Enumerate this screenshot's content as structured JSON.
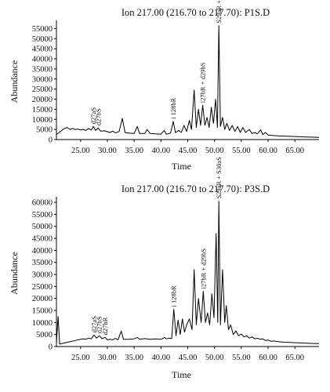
{
  "chart_data": [
    {
      "type": "line",
      "title": "Ion 217.00 (216.70 to 217.70): P1S.D",
      "xlabel": "Time",
      "ylabel": "Abundance",
      "xlim": [
        20.5,
        69.5
      ],
      "ylim": [
        0,
        57500
      ],
      "x_ticks": [
        "25.00",
        "30.00",
        "35.00",
        "40.00",
        "45.00",
        "50.00",
        "55.00",
        "60.00",
        "65.00"
      ],
      "x_tick_values": [
        25,
        30,
        35,
        40,
        45,
        50,
        55,
        60,
        65
      ],
      "y_ticks": [
        "0",
        "5000",
        "10000",
        "15000",
        "20000",
        "25000",
        "30000",
        "35000",
        "40000",
        "45000",
        "50000",
        "55000"
      ],
      "y_tick_values": [
        0,
        5000,
        10000,
        15000,
        20000,
        25000,
        30000,
        35000,
        40000,
        45000,
        50000,
        55000
      ],
      "grid": false,
      "series": [
        {
          "points": [
            [
              20.5,
              2500
            ],
            [
              21.0,
              3500
            ],
            [
              21.5,
              4500
            ],
            [
              22.0,
              5500
            ],
            [
              22.5,
              6000
            ],
            [
              23.0,
              5000
            ],
            [
              23.5,
              5500
            ],
            [
              24.0,
              5000
            ],
            [
              24.5,
              5200
            ],
            [
              25.0,
              4800
            ],
            [
              25.5,
              5000
            ],
            [
              26.0,
              4500
            ],
            [
              26.5,
              5500
            ],
            [
              27.0,
              4700
            ],
            [
              27.4,
              6500
            ],
            [
              27.8,
              4500
            ],
            [
              28.3,
              5800
            ],
            [
              28.7,
              4200
            ],
            [
              29.5,
              4300
            ],
            [
              30.5,
              3500
            ],
            [
              31.0,
              4200
            ],
            [
              31.5,
              3300
            ],
            [
              32.2,
              4000
            ],
            [
              32.8,
              10500
            ],
            [
              33.3,
              3500
            ],
            [
              34.0,
              3200
            ],
            [
              35.0,
              3000
            ],
            [
              35.6,
              6500
            ],
            [
              36.0,
              3000
            ],
            [
              37.0,
              3000
            ],
            [
              37.4,
              5000
            ],
            [
              38.0,
              3000
            ],
            [
              39.0,
              2800
            ],
            [
              40.0,
              2700
            ],
            [
              40.6,
              4500
            ],
            [
              41.0,
              2700
            ],
            [
              41.8,
              3200
            ],
            [
              42.3,
              9000
            ],
            [
              42.7,
              3400
            ],
            [
              43.3,
              4500
            ],
            [
              43.8,
              3500
            ],
            [
              44.3,
              7000
            ],
            [
              44.8,
              4000
            ],
            [
              45.3,
              9500
            ],
            [
              45.7,
              5000
            ],
            [
              46.2,
              24500
            ],
            [
              46.6,
              6000
            ],
            [
              47.0,
              15000
            ],
            [
              47.4,
              7000
            ],
            [
              47.8,
              17000
            ],
            [
              48.2,
              7000
            ],
            [
              48.6,
              11000
            ],
            [
              49.0,
              6000
            ],
            [
              49.4,
              16000
            ],
            [
              49.8,
              8000
            ],
            [
              50.2,
              20000
            ],
            [
              50.55,
              6000
            ],
            [
              50.8,
              56500
            ],
            [
              51.1,
              6500
            ],
            [
              51.5,
              11000
            ],
            [
              51.9,
              5000
            ],
            [
              52.3,
              8000
            ],
            [
              52.8,
              4500
            ],
            [
              53.3,
              7000
            ],
            [
              53.8,
              4000
            ],
            [
              54.3,
              6500
            ],
            [
              54.8,
              3500
            ],
            [
              55.3,
              6000
            ],
            [
              55.8,
              3500
            ],
            [
              56.5,
              5000
            ],
            [
              57.0,
              3000
            ],
            [
              57.5,
              3500
            ],
            [
              58.0,
              2800
            ],
            [
              58.6,
              4800
            ],
            [
              59.0,
              2500
            ],
            [
              59.5,
              3500
            ],
            [
              60.0,
              2200
            ],
            [
              61.0,
              2000
            ],
            [
              62.0,
              1800
            ],
            [
              63.0,
              1700
            ],
            [
              64.0,
              1600
            ],
            [
              65.0,
              1500
            ],
            [
              66.0,
              1400
            ],
            [
              67.0,
              1300
            ],
            [
              68.0,
              1200
            ],
            [
              69.5,
              1100
            ]
          ]
        }
      ],
      "annotations": [
        {
          "text": "d27aS",
          "x": 27.4,
          "y": 6500
        },
        {
          "text": "d27bS",
          "x": 28.3,
          "y": 5800
        },
        {
          "text": "i 128bR",
          "x": 42.3,
          "y": 9000
        },
        {
          "text": "i27bR + d29bS",
          "x": 47.8,
          "y": 17000
        },
        {
          "text": "S29aR + S30aS",
          "x": 50.8,
          "y": 56500
        }
      ]
    },
    {
      "type": "line",
      "title": "Ion 217.00 (216.70 to 217.70): P3S.D",
      "xlabel": "Time",
      "ylabel": "Abundance",
      "xlim": [
        20.5,
        69.5
      ],
      "ylim": [
        0,
        61000
      ],
      "x_ticks": [
        "25.00",
        "30.00",
        "35.00",
        "40.00",
        "45.00",
        "50.00",
        "55.00",
        "60.00",
        "65.00"
      ],
      "x_tick_values": [
        25,
        30,
        35,
        40,
        45,
        50,
        55,
        60,
        65
      ],
      "y_ticks": [
        "0",
        "5000",
        "10000",
        "15000",
        "20000",
        "25000",
        "30000",
        "35000",
        "40000",
        "45000",
        "50000",
        "55000",
        "60000"
      ],
      "y_tick_values": [
        0,
        5000,
        10000,
        15000,
        20000,
        25000,
        30000,
        35000,
        40000,
        45000,
        50000,
        55000,
        60000
      ],
      "grid": false,
      "series": [
        {
          "points": [
            [
              20.5,
              1500
            ],
            [
              20.8,
              12500
            ],
            [
              21.1,
              1000
            ],
            [
              21.5,
              1200
            ],
            [
              22.0,
              1500
            ],
            [
              23.0,
              2000
            ],
            [
              24.0,
              2500
            ],
            [
              25.0,
              3000
            ],
            [
              25.5,
              3200
            ],
            [
              26.0,
              3000
            ],
            [
              26.5,
              3500
            ],
            [
              27.0,
              3200
            ],
            [
              27.5,
              4800
            ],
            [
              28.0,
              3500
            ],
            [
              28.5,
              4500
            ],
            [
              29.0,
              3300
            ],
            [
              29.6,
              3800
            ],
            [
              30.0,
              2800
            ],
            [
              30.5,
              3000
            ],
            [
              31.0,
              2800
            ],
            [
              31.5,
              3400
            ],
            [
              32.0,
              2800
            ],
            [
              32.6,
              6500
            ],
            [
              33.0,
              3000
            ],
            [
              34.0,
              3000
            ],
            [
              35.0,
              3200
            ],
            [
              35.6,
              3800
            ],
            [
              36.0,
              3000
            ],
            [
              37.0,
              3300
            ],
            [
              38.0,
              3000
            ],
            [
              39.0,
              3200
            ],
            [
              40.0,
              3000
            ],
            [
              40.7,
              3800
            ],
            [
              41.0,
              3200
            ],
            [
              41.5,
              3500
            ],
            [
              42.0,
              3300
            ],
            [
              42.4,
              15500
            ],
            [
              42.8,
              4500
            ],
            [
              43.2,
              11000
            ],
            [
              43.6,
              5000
            ],
            [
              44.0,
              11500
            ],
            [
              44.4,
              6000
            ],
            [
              44.8,
              9000
            ],
            [
              45.3,
              11500
            ],
            [
              45.8,
              7000
            ],
            [
              46.2,
              32000
            ],
            [
              46.6,
              9000
            ],
            [
              47.0,
              20000
            ],
            [
              47.5,
              10000
            ],
            [
              47.9,
              23000
            ],
            [
              48.3,
              10000
            ],
            [
              48.7,
              14000
            ],
            [
              49.1,
              9000
            ],
            [
              49.5,
              22000
            ],
            [
              49.9,
              12000
            ],
            [
              50.3,
              47000
            ],
            [
              50.6,
              10000
            ],
            [
              50.8,
              60500
            ],
            [
              51.1,
              9000
            ],
            [
              51.5,
              32000
            ],
            [
              51.9,
              10000
            ],
            [
              52.2,
              17000
            ],
            [
              52.6,
              7000
            ],
            [
              53.0,
              9000
            ],
            [
              53.5,
              5000
            ],
            [
              54.0,
              6500
            ],
            [
              54.5,
              4500
            ],
            [
              55.0,
              5200
            ],
            [
              55.5,
              4000
            ],
            [
              56.0,
              4500
            ],
            [
              56.5,
              3500
            ],
            [
              57.0,
              4000
            ],
            [
              57.5,
              3200
            ],
            [
              58.0,
              3500
            ],
            [
              58.5,
              3000
            ],
            [
              59.0,
              3200
            ],
            [
              59.5,
              2500
            ],
            [
              60.0,
              2700
            ],
            [
              60.5,
              2200
            ],
            [
              61.0,
              2300
            ],
            [
              62.0,
              2000
            ],
            [
              63.0,
              1800
            ],
            [
              64.0,
              1700
            ],
            [
              65.0,
              1600
            ],
            [
              66.0,
              1500
            ],
            [
              67.0,
              1400
            ],
            [
              68.0,
              1300
            ],
            [
              69.5,
              1200
            ]
          ]
        }
      ],
      "annotations": [
        {
          "text": "d27aS",
          "x": 27.5,
          "y": 4800
        },
        {
          "text": "d27bS",
          "x": 28.5,
          "y": 4500
        },
        {
          "text": "d27bR",
          "x": 29.6,
          "y": 3800
        },
        {
          "text": "i 128bR",
          "x": 42.4,
          "y": 15500
        },
        {
          "text": "i27bR + d29bS",
          "x": 47.9,
          "y": 23000
        },
        {
          "text": "S29aR + S30aS",
          "x": 50.8,
          "y": 60500
        }
      ]
    }
  ]
}
